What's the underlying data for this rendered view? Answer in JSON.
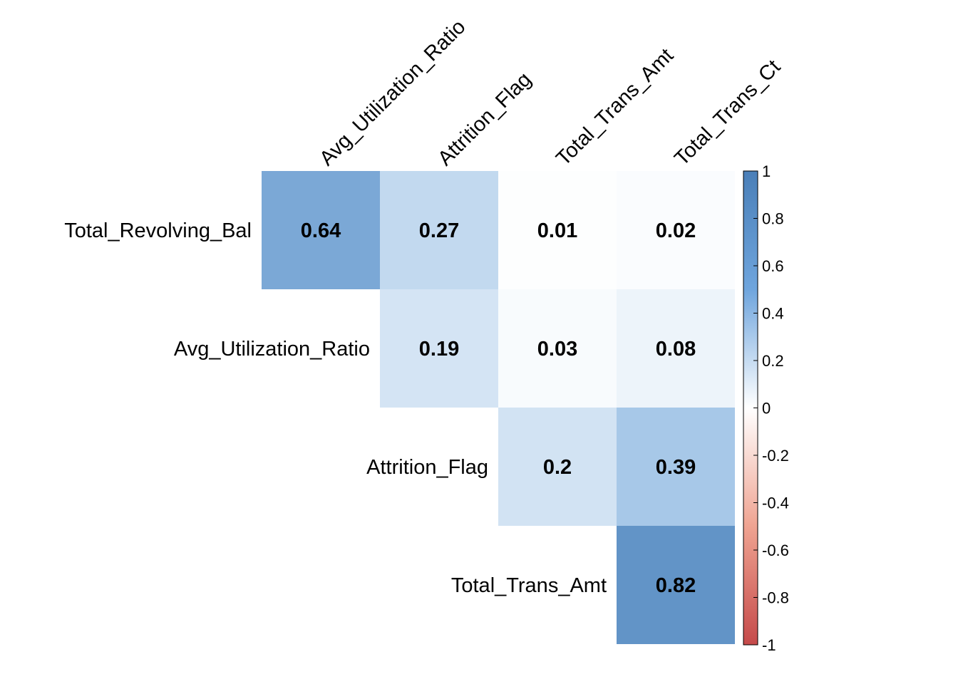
{
  "chart_data": {
    "type": "heatmap",
    "title": "",
    "row_labels": [
      "Total_Revolving_Bal",
      "Avg_Utilization_Ratio",
      "Attrition_Flag",
      "Total_Trans_Amt"
    ],
    "col_labels": [
      "Avg_Utilization_Ratio",
      "Attrition_Flag",
      "Total_Trans_Amt",
      "Total_Trans_Ct"
    ],
    "cells": [
      {
        "row": "Total_Revolving_Bal",
        "col": "Avg_Utilization_Ratio",
        "value": 0.64,
        "label": "0.64"
      },
      {
        "row": "Total_Revolving_Bal",
        "col": "Attrition_Flag",
        "value": 0.27,
        "label": "0.27"
      },
      {
        "row": "Total_Revolving_Bal",
        "col": "Total_Trans_Amt",
        "value": 0.01,
        "label": "0.01"
      },
      {
        "row": "Total_Revolving_Bal",
        "col": "Total_Trans_Ct",
        "value": 0.02,
        "label": "0.02"
      },
      {
        "row": "Avg_Utilization_Ratio",
        "col": "Attrition_Flag",
        "value": 0.19,
        "label": "0.19"
      },
      {
        "row": "Avg_Utilization_Ratio",
        "col": "Total_Trans_Amt",
        "value": 0.03,
        "label": "0.03"
      },
      {
        "row": "Avg_Utilization_Ratio",
        "col": "Total_Trans_Ct",
        "value": 0.08,
        "label": "0.08"
      },
      {
        "row": "Attrition_Flag",
        "col": "Total_Trans_Amt",
        "value": 0.2,
        "label": "0.2"
      },
      {
        "row": "Attrition_Flag",
        "col": "Total_Trans_Ct",
        "value": 0.39,
        "label": "0.39"
      },
      {
        "row": "Total_Trans_Amt",
        "col": "Total_Trans_Ct",
        "value": 0.82,
        "label": "0.82"
      }
    ],
    "colorbar": {
      "range": [
        -1,
        1
      ],
      "ticks": [
        "1",
        "0.8",
        "0.6",
        "0.4",
        "0.2",
        "0",
        "-0.2",
        "-0.4",
        "-0.6",
        "-0.8",
        "-1"
      ],
      "colors": {
        "negative": "#B2182B",
        "mid_negative": "#F4A582",
        "zero": "#FFFFFF",
        "mid_positive": "#92C5DE",
        "positive": "#2166AC"
      }
    },
    "grid": false,
    "legend": "right"
  }
}
